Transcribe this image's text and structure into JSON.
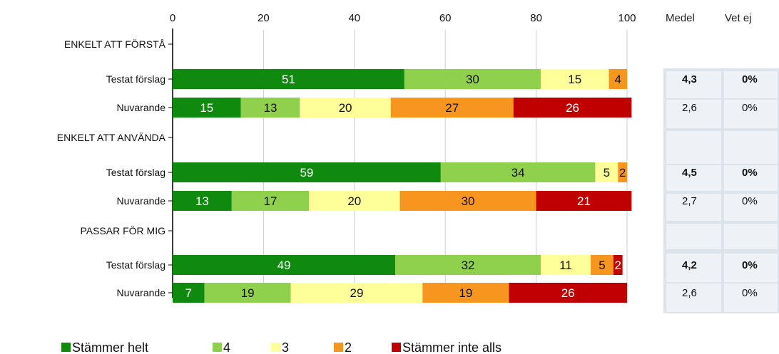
{
  "chart_data": {
    "type": "bar",
    "orientation": "horizontal",
    "stacked": true,
    "xlim": [
      0,
      100
    ],
    "x_ticks": [
      "0",
      "20",
      "40",
      "60",
      "80",
      "100"
    ],
    "grid": true,
    "legend_position": "bottom",
    "series": [
      {
        "name": "Stämmer helt",
        "color": "#0f8a0f"
      },
      {
        "name": "4",
        "color": "#8fd04c"
      },
      {
        "name": "3",
        "color": "#ffff99"
      },
      {
        "name": "2",
        "color": "#f7961e"
      },
      {
        "name": "Stämmer inte alls",
        "color": "#c00000"
      }
    ],
    "columns": [
      "Medel",
      "Vet ej"
    ],
    "groups": [
      {
        "label": "ENKELT ATT FÖRSTÅ",
        "rows": [
          {
            "label": "Testat förslag",
            "values": [
              51,
              30,
              15,
              4,
              0
            ],
            "labels": [
              "51",
              "30",
              "15",
              "4",
              ""
            ],
            "medel": "4,3",
            "vetej": "0%",
            "bold": true
          },
          {
            "label": "Nuvarande",
            "values": [
              15,
              13,
              20,
              27,
              26
            ],
            "labels": [
              "15",
              "13",
              "20",
              "27",
              "26"
            ],
            "medel": "2,6",
            "vetej": "0%",
            "bold": false
          }
        ]
      },
      {
        "label": "ENKELT ATT ANVÄNDA",
        "rows": [
          {
            "label": "Testat förslag",
            "values": [
              59,
              34,
              5,
              2,
              0
            ],
            "labels": [
              "59",
              "34",
              "5",
              "2",
              ""
            ],
            "medel": "4,5",
            "vetej": "0%",
            "bold": true
          },
          {
            "label": "Nuvarande",
            "values": [
              13,
              17,
              20,
              30,
              21
            ],
            "labels": [
              "13",
              "17",
              "20",
              "30",
              "21"
            ],
            "medel": "2,7",
            "vetej": "0%",
            "bold": false
          }
        ]
      },
      {
        "label": "PASSAR FÖR MIG",
        "rows": [
          {
            "label": "Testat förslag",
            "values": [
              49,
              32,
              11,
              5,
              2
            ],
            "labels": [
              "49",
              "32",
              "11",
              "5",
              "2"
            ],
            "medel": "4,2",
            "vetej": "0%",
            "bold": true
          },
          {
            "label": "Nuvarande",
            "values": [
              7,
              19,
              29,
              19,
              26
            ],
            "labels": [
              "7",
              "19",
              "29",
              "19",
              "26"
            ],
            "medel": "2,6",
            "vetej": "0%",
            "bold": false
          }
        ]
      }
    ]
  }
}
